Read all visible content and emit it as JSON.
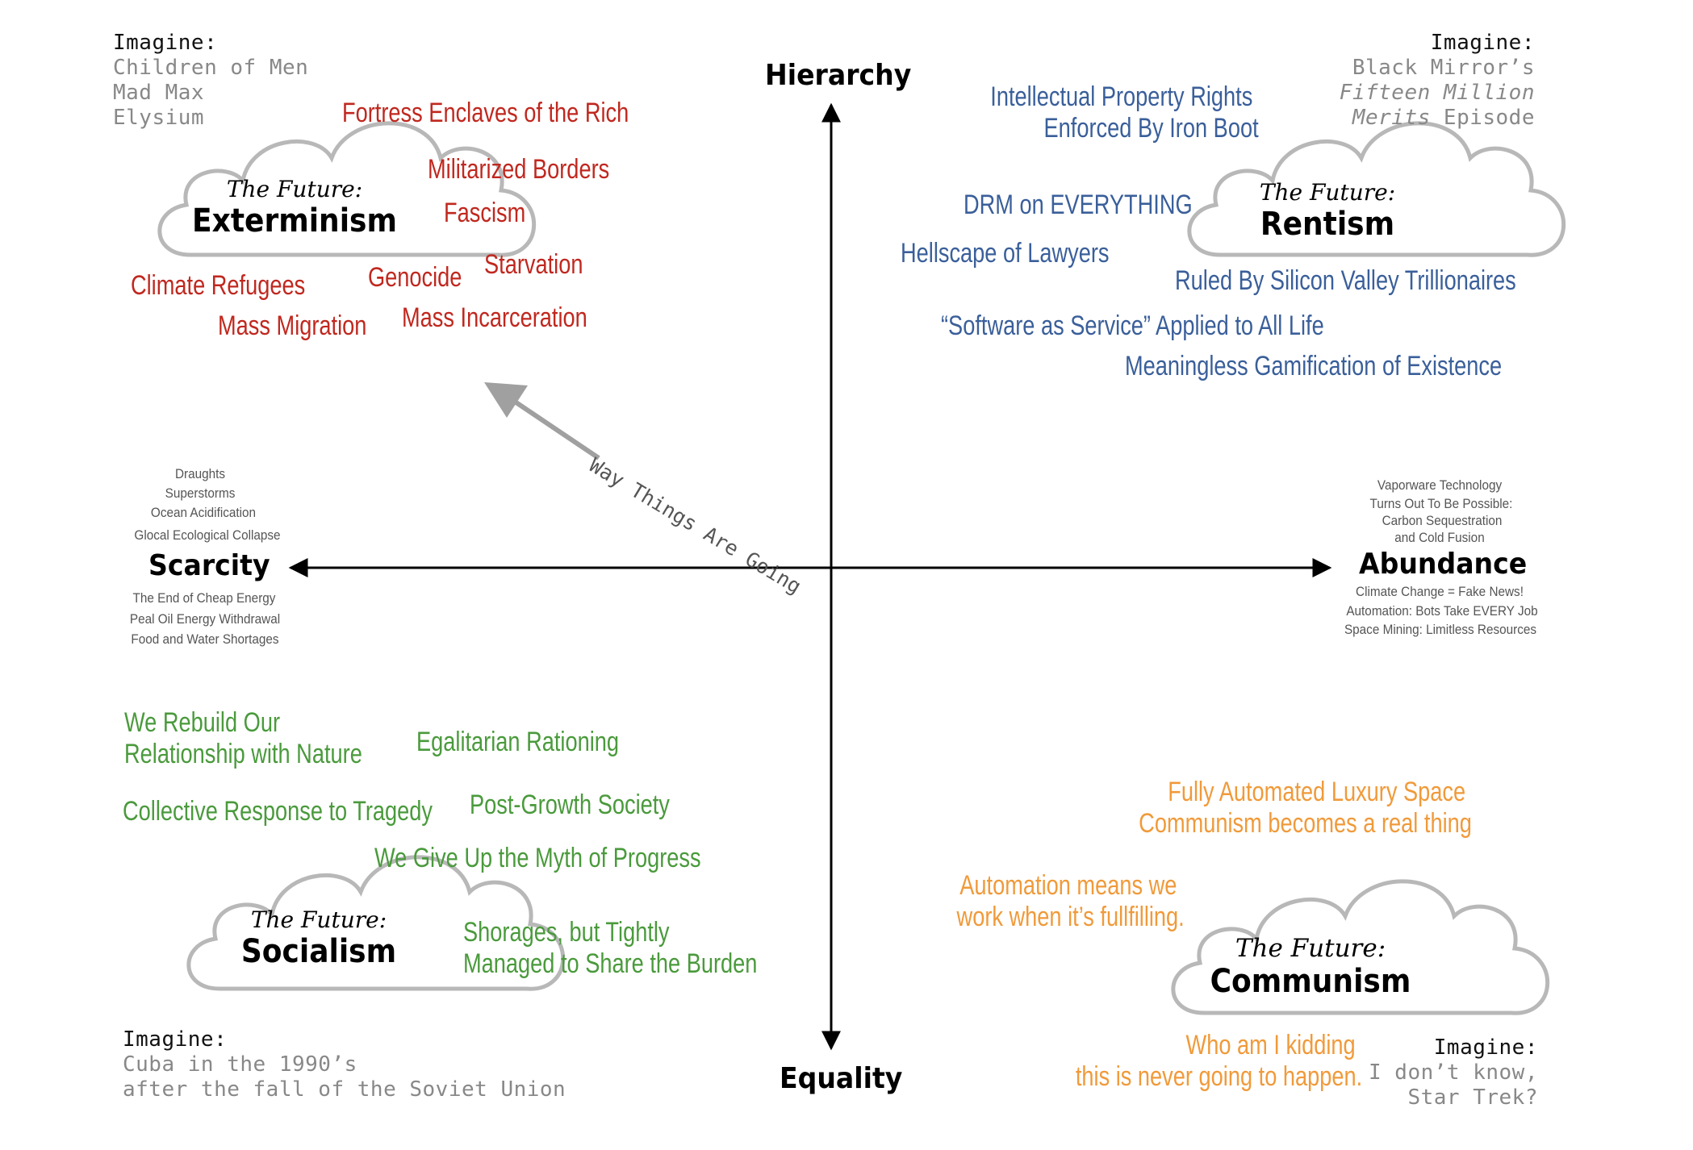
{
  "axes": {
    "top": "Hierarchy",
    "bottom": "Equality",
    "left": "Scarcity",
    "right": "Abundance"
  },
  "scarcity_notes_above": [
    "Draughts",
    "Superstorms",
    "Ocean Acidification",
    "Glocal Ecological Collapse"
  ],
  "scarcity_notes_below": [
    "The End of Cheap Energy",
    "Peal Oil Energy Withdrawal",
    "Food and Water Shortages"
  ],
  "abundance_notes_above": [
    "Vaporware Technology",
    "Turns Out To Be Possible:",
    "Carbon Sequestration",
    "and Cold Fusion"
  ],
  "abundance_notes_below": [
    "Climate Change = Fake News!",
    "Automation: Bots Take EVERY Job",
    "Space Mining: Limitless Resources"
  ],
  "trend_arrow_label": "Way Things Are Going",
  "quadrants": {
    "top_left": {
      "imagine_label": "Imagine:",
      "imagine_items": [
        "Children of Men",
        "Mad Max",
        "Elysium"
      ],
      "cloud_prefix": "The Future:",
      "cloud_title": "Exterminism",
      "items": [
        "Fortress Enclaves of the Rich",
        "Militarized Borders",
        "Fascism",
        "Starvation",
        "Genocide",
        "Climate Refugees",
        "Mass Migration",
        "Mass Incarceration"
      ]
    },
    "top_right": {
      "imagine_label": "Imagine:",
      "imagine_line1": "Black Mirror’s",
      "imagine_line2": "Fifteen Million",
      "imagine_line3_italic": "Merits",
      "imagine_line3_rest": " Episode",
      "cloud_prefix": "The Future:",
      "cloud_title": "Rentism",
      "items": [
        "Intellectual Property Rights",
        "Enforced By Iron Boot",
        "DRM on EVERYTHING",
        "Hellscape of Lawyers",
        "Ruled By Silicon Valley Trillionaires",
        "“Software as Service” Applied to All Life",
        "Meaningless Gamification of Existence"
      ]
    },
    "bottom_left": {
      "imagine_label": "Imagine:",
      "imagine_items": [
        "Cuba in the 1990’s",
        "after the fall of the Soviet Union"
      ],
      "cloud_prefix": "The Future:",
      "cloud_title": "Socialism",
      "items": [
        "We Rebuild Our",
        "Relationship with Nature",
        "Egalitarian Rationing",
        "Collective Response to Tragedy",
        "Post-Growth Society",
        "We Give Up the Myth of Progress",
        "Shorages, but Tightly",
        "Managed to Share the Burden"
      ]
    },
    "bottom_right": {
      "imagine_label": "Imagine:",
      "imagine_items": [
        "I don’t know,",
        "Star Trek?"
      ],
      "cloud_prefix": "The Future:",
      "cloud_title": "Communism",
      "items": [
        "Fully Automated Luxury Space",
        "Communism becomes a real thing",
        "Automation means we",
        "work when it’s fullfilling.",
        "Who am I kidding",
        "this is never going to happen."
      ]
    }
  },
  "colors": {
    "exterminism": "#c0281f",
    "rentism": "#3a5f9a",
    "socialism": "#4a9a3c",
    "communism": "#f09a3a",
    "cloud_stroke": "#b8b8b8",
    "arrow_gray": "#a0a0a0"
  }
}
